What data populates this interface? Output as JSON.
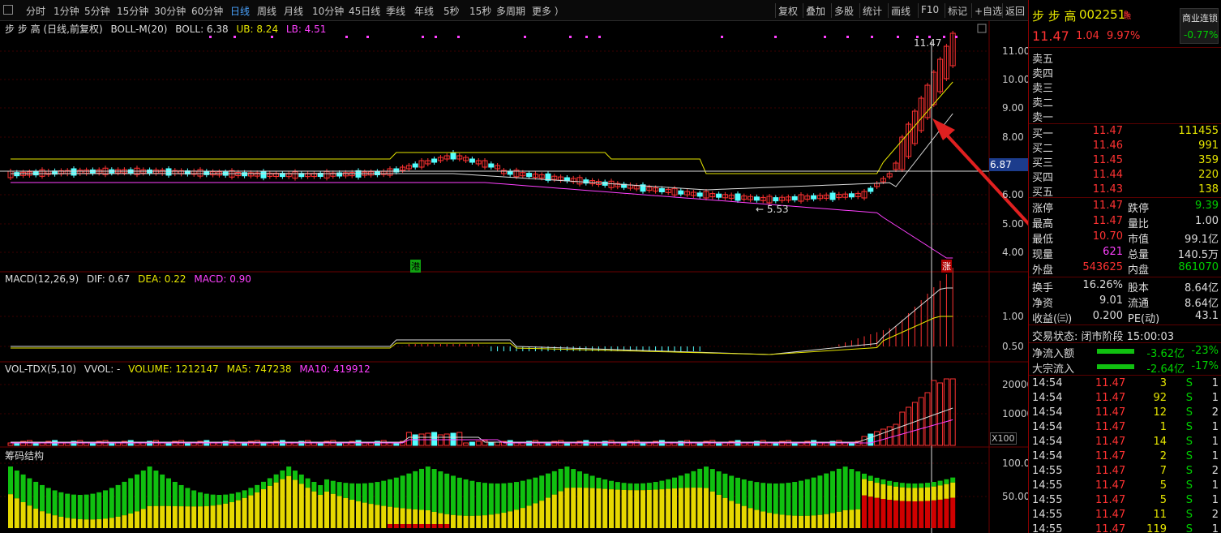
{
  "toolbar": {
    "periods": [
      "分时",
      "1分钟",
      "5分钟",
      "15分钟",
      "30分钟",
      "60分钟",
      "日线",
      "周线",
      "月线",
      "10分钟",
      "45日线",
      "季线",
      "年线",
      "5秒",
      "15秒",
      "多周期",
      "更多 ）"
    ],
    "active_period": "日线",
    "right_buttons": [
      "复权",
      "叠加",
      "多股",
      "统计",
      "画线",
      "F10",
      "标记",
      "+自选",
      "返回"
    ]
  },
  "main_panel": {
    "title": "步 步 高 (日线,前复权)",
    "indicator": "BOLL-M(20)",
    "boll": "BOLL: 6.38",
    "ub": "UB: 8.24",
    "lb": "LB: 4.51",
    "y_ticks": [
      "11.00",
      "10.00",
      "9.00",
      "8.00",
      "7.00",
      "6.00",
      "5.00",
      "4.00"
    ],
    "price_label": "6.87",
    "high_label": "11.47",
    "low_label": "5.53",
    "tag_gang": "港",
    "tag_zhang": "涨"
  },
  "macd_panel": {
    "title": "MACD(12,26,9)",
    "dif": "DIF: 0.67",
    "dea": "DEA: 0.22",
    "macd": "MACD: 0.90",
    "y_ticks": [
      "1.00",
      "0.50"
    ]
  },
  "vol_panel": {
    "title": "VOL-TDX(5,10)",
    "vvol": "VVOL: -",
    "volume": "VOLUME: 1212147",
    "ma5": "MA5: 747238",
    "ma10": "MA10: 419912",
    "y_ticks": [
      "20000",
      "10000"
    ],
    "unit": "X100"
  },
  "chip_panel": {
    "title": "筹码结构",
    "y_ticks": [
      "100.0",
      "50.00"
    ]
  },
  "quote": {
    "name": "步 步 高",
    "code": "002251",
    "tag": "R",
    "tag2": "融",
    "sector_label": "商业连锁",
    "sector_change": "-0.77%",
    "price": "11.47",
    "change": "1.04",
    "change_pct": "9.97%",
    "asks": [
      {
        "label": "卖五",
        "price": "",
        "vol": ""
      },
      {
        "label": "卖四",
        "price": "",
        "vol": ""
      },
      {
        "label": "卖三",
        "price": "",
        "vol": ""
      },
      {
        "label": "卖二",
        "price": "",
        "vol": ""
      },
      {
        "label": "卖一",
        "price": "",
        "vol": ""
      }
    ],
    "bids": [
      {
        "label": "买一",
        "price": "11.47",
        "vol": "111455"
      },
      {
        "label": "买二",
        "price": "11.46",
        "vol": "991"
      },
      {
        "label": "买三",
        "price": "11.45",
        "vol": "359"
      },
      {
        "label": "买四",
        "price": "11.44",
        "vol": "220"
      },
      {
        "label": "买五",
        "price": "11.43",
        "vol": "138"
      }
    ],
    "stats1": [
      {
        "l1": "涨停",
        "v1": "11.47",
        "c1": "red",
        "l2": "跌停",
        "v2": "9.39",
        "c2": "grn"
      },
      {
        "l1": "最高",
        "v1": "11.47",
        "c1": "red",
        "l2": "量比",
        "v2": "1.00",
        "c2": "wht"
      },
      {
        "l1": "最低",
        "v1": "10.70",
        "c1": "red",
        "l2": "市值",
        "v2": "99.1亿",
        "c2": "wht"
      },
      {
        "l1": "现量",
        "v1": "621",
        "c1": "mag",
        "l2": "总量",
        "v2": "140.5万",
        "c2": "wht"
      },
      {
        "l1": "外盘",
        "v1": "543625",
        "c1": "red",
        "l2": "内盘",
        "v2": "861070",
        "c2": "grn"
      }
    ],
    "stats2": [
      {
        "l1": "换手",
        "v1": "16.26%",
        "l2": "股本",
        "v2": "8.64亿"
      },
      {
        "l1": "净资",
        "v1": "9.01",
        "l2": "流通",
        "v2": "8.64亿"
      },
      {
        "l1": "收益(㈢)",
        "v1": "0.200",
        "l2": "PE(动)",
        "v2": "43.1"
      }
    ],
    "trade_status": "交易状态: 闭市阶段 15:00:03",
    "flows": [
      {
        "label": "净流入额",
        "value": "-3.62亿",
        "pct": "-23%"
      },
      {
        "label": "大宗流入",
        "value": "-2.64亿",
        "pct": "-17%"
      }
    ],
    "ticks": [
      {
        "t": "14:54",
        "p": "11.47",
        "v": "3",
        "s": "S",
        "n": "1"
      },
      {
        "t": "14:54",
        "p": "11.47",
        "v": "92",
        "s": "S",
        "n": "1"
      },
      {
        "t": "14:54",
        "p": "11.47",
        "v": "12",
        "s": "S",
        "n": "2"
      },
      {
        "t": "14:54",
        "p": "11.47",
        "v": "1",
        "s": "S",
        "n": "1"
      },
      {
        "t": "14:54",
        "p": "11.47",
        "v": "14",
        "s": "S",
        "n": "1"
      },
      {
        "t": "14:54",
        "p": "11.47",
        "v": "2",
        "s": "S",
        "n": "1"
      },
      {
        "t": "14:55",
        "p": "11.47",
        "v": "7",
        "s": "S",
        "n": "2"
      },
      {
        "t": "14:55",
        "p": "11.47",
        "v": "5",
        "s": "S",
        "n": "1"
      },
      {
        "t": "14:55",
        "p": "11.47",
        "v": "5",
        "s": "S",
        "n": "1"
      },
      {
        "t": "14:55",
        "p": "11.47",
        "v": "11",
        "s": "S",
        "n": "2"
      },
      {
        "t": "14:55",
        "p": "11.47",
        "v": "119",
        "s": "S",
        "n": "1"
      }
    ]
  },
  "colors": {
    "up": "#ff3232",
    "down": "#54ffff",
    "boll_mid": "#dcdcdc",
    "boll_ub": "#e6e600",
    "boll_lb": "#ff40ff",
    "chip_green": "#10c010",
    "chip_yellow": "#e6d800",
    "chip_red": "#d00000"
  }
}
